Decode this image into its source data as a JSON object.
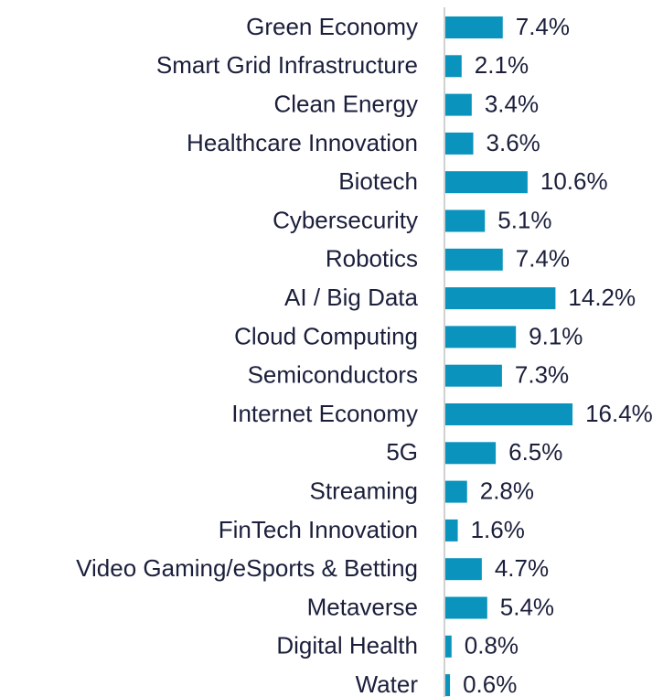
{
  "chart_data": {
    "type": "barh",
    "categories": [
      "Green Economy",
      "Smart Grid Infrastructure",
      "Clean Energy",
      "Healthcare Innovation",
      "Biotech",
      "Cybersecurity",
      "Robotics",
      "AI / Big Data",
      "Cloud Computing",
      "Semiconductors",
      "Internet Economy",
      "5G",
      "Streaming",
      "FinTech Innovation",
      "Video Gaming/eSports & Betting",
      "Metaverse",
      "Digital Health",
      "Water"
    ],
    "values": [
      7.4,
      2.1,
      3.4,
      3.6,
      10.6,
      5.1,
      7.4,
      14.2,
      9.1,
      7.3,
      16.4,
      6.5,
      2.8,
      1.6,
      4.7,
      5.4,
      0.8,
      0.6
    ],
    "value_labels": [
      "7.4%",
      "2.1%",
      "3.4%",
      "3.6%",
      "10.6%",
      "5.1%",
      "7.4%",
      "14.2%",
      "9.1%",
      "7.3%",
      "16.4%",
      "6.5%",
      "2.8%",
      "1.6%",
      "4.7%",
      "5.4%",
      "0.8%",
      "0.6%"
    ],
    "color": "#0a93bd"
  }
}
